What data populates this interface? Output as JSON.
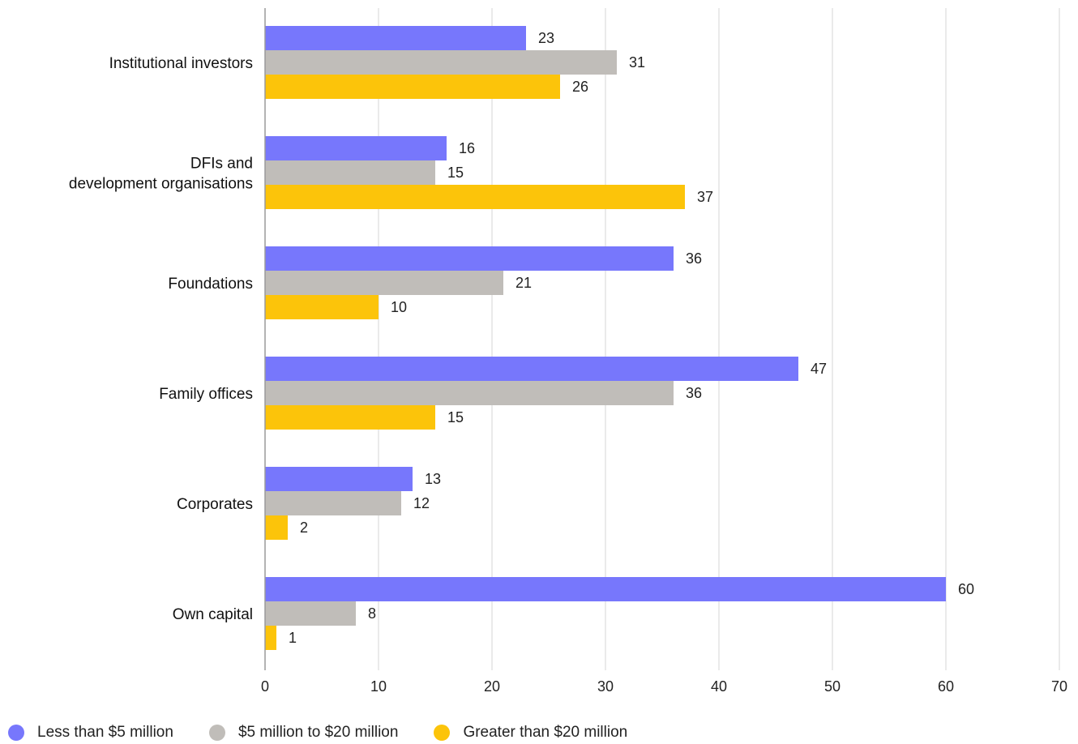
{
  "chart_data": {
    "type": "bar",
    "orientation": "horizontal",
    "categories": [
      [
        "Institutional investors"
      ],
      [
        "DFIs and",
        "development organisations"
      ],
      [
        "Foundations"
      ],
      [
        "Family offices"
      ],
      [
        "Corporates"
      ],
      [
        "Own capital"
      ]
    ],
    "series": [
      {
        "name": "Less than $5 million",
        "color": "#7777fc",
        "values": [
          23,
          16,
          36,
          47,
          13,
          60
        ]
      },
      {
        "name": "$5 million to $20 million",
        "color": "#c0bdb9",
        "values": [
          31,
          15,
          21,
          36,
          12,
          8
        ]
      },
      {
        "name": "Greater than $20 million",
        "color": "#fcc40a",
        "values": [
          26,
          37,
          10,
          15,
          2,
          1
        ]
      }
    ],
    "xlim": [
      0,
      70
    ],
    "xticks": [
      0,
      10,
      20,
      30,
      40,
      50,
      60,
      70
    ],
    "grid": "vertical",
    "legend_position": "bottom-left",
    "data_labels": true
  }
}
